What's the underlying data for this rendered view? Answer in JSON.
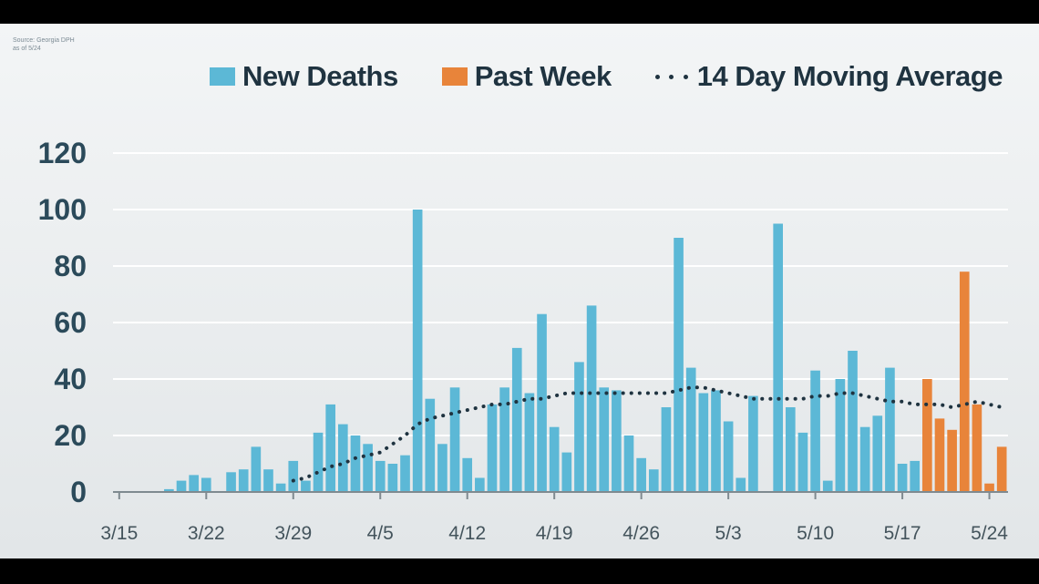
{
  "source_note": [
    "Source: Georgia DPH",
    "as of 5/24"
  ],
  "legend": [
    {
      "label": "New Deaths",
      "color": "#5cb8d6",
      "kind": "bar"
    },
    {
      "label": "Past Week",
      "color": "#e8843a",
      "kind": "bar"
    },
    {
      "label": "14 Day Moving Average",
      "color": "#1f3340",
      "kind": "dots"
    }
  ],
  "chart_data": {
    "type": "bar",
    "ylim": [
      0,
      120
    ],
    "yticks": [
      0,
      20,
      40,
      60,
      80,
      100,
      120
    ],
    "xtick_labels": [
      "3/15",
      "3/22",
      "3/29",
      "4/5",
      "4/12",
      "4/19",
      "4/26",
      "5/3",
      "5/10",
      "5/17",
      "5/24"
    ],
    "x_start": "3/15",
    "grid": true,
    "legend_position": "top",
    "series": [
      {
        "name": "New Deaths",
        "color": "#5cb8d6",
        "values": [
          0,
          0,
          0,
          0,
          1,
          4,
          6,
          5,
          0,
          7,
          8,
          16,
          8,
          3,
          11,
          4,
          21,
          31,
          24,
          20,
          17,
          11,
          10,
          13,
          100,
          33,
          17,
          37,
          12,
          5,
          31,
          37,
          51,
          35,
          63,
          23,
          14,
          46,
          66,
          37,
          36,
          20,
          12,
          8,
          30,
          90,
          44,
          35,
          36,
          25,
          5,
          34,
          0,
          95,
          30,
          21,
          43,
          4,
          40,
          50,
          23,
          27,
          44,
          10,
          11,
          0,
          0,
          0,
          0,
          0,
          0,
          0
        ]
      },
      {
        "name": "Past Week",
        "color": "#e8843a",
        "values": [
          0,
          0,
          0,
          0,
          0,
          0,
          0,
          0,
          0,
          0,
          0,
          0,
          0,
          0,
          0,
          0,
          0,
          0,
          0,
          0,
          0,
          0,
          0,
          0,
          0,
          0,
          0,
          0,
          0,
          0,
          0,
          0,
          0,
          0,
          0,
          0,
          0,
          0,
          0,
          0,
          0,
          0,
          0,
          0,
          0,
          0,
          0,
          0,
          0,
          0,
          0,
          0,
          0,
          0,
          0,
          0,
          0,
          0,
          0,
          0,
          0,
          0,
          0,
          0,
          0,
          40,
          26,
          22,
          78,
          31,
          3,
          16
        ]
      },
      {
        "name": "14 Day Moving Average",
        "color": "#1f3340",
        "values": [
          null,
          null,
          null,
          null,
          null,
          null,
          null,
          null,
          null,
          null,
          null,
          null,
          null,
          null,
          4,
          5,
          7,
          9,
          10,
          12,
          13,
          14,
          17,
          20,
          24,
          26,
          27,
          28,
          29,
          30,
          31,
          31,
          32,
          33,
          33,
          34,
          35,
          35,
          35,
          35,
          35,
          35,
          35,
          35,
          35,
          36,
          37,
          37,
          36,
          35,
          34,
          33,
          33,
          33,
          33,
          33,
          34,
          34,
          35,
          35,
          34,
          33,
          32,
          32,
          31,
          31,
          31,
          30,
          31,
          32,
          31,
          30
        ]
      }
    ]
  }
}
